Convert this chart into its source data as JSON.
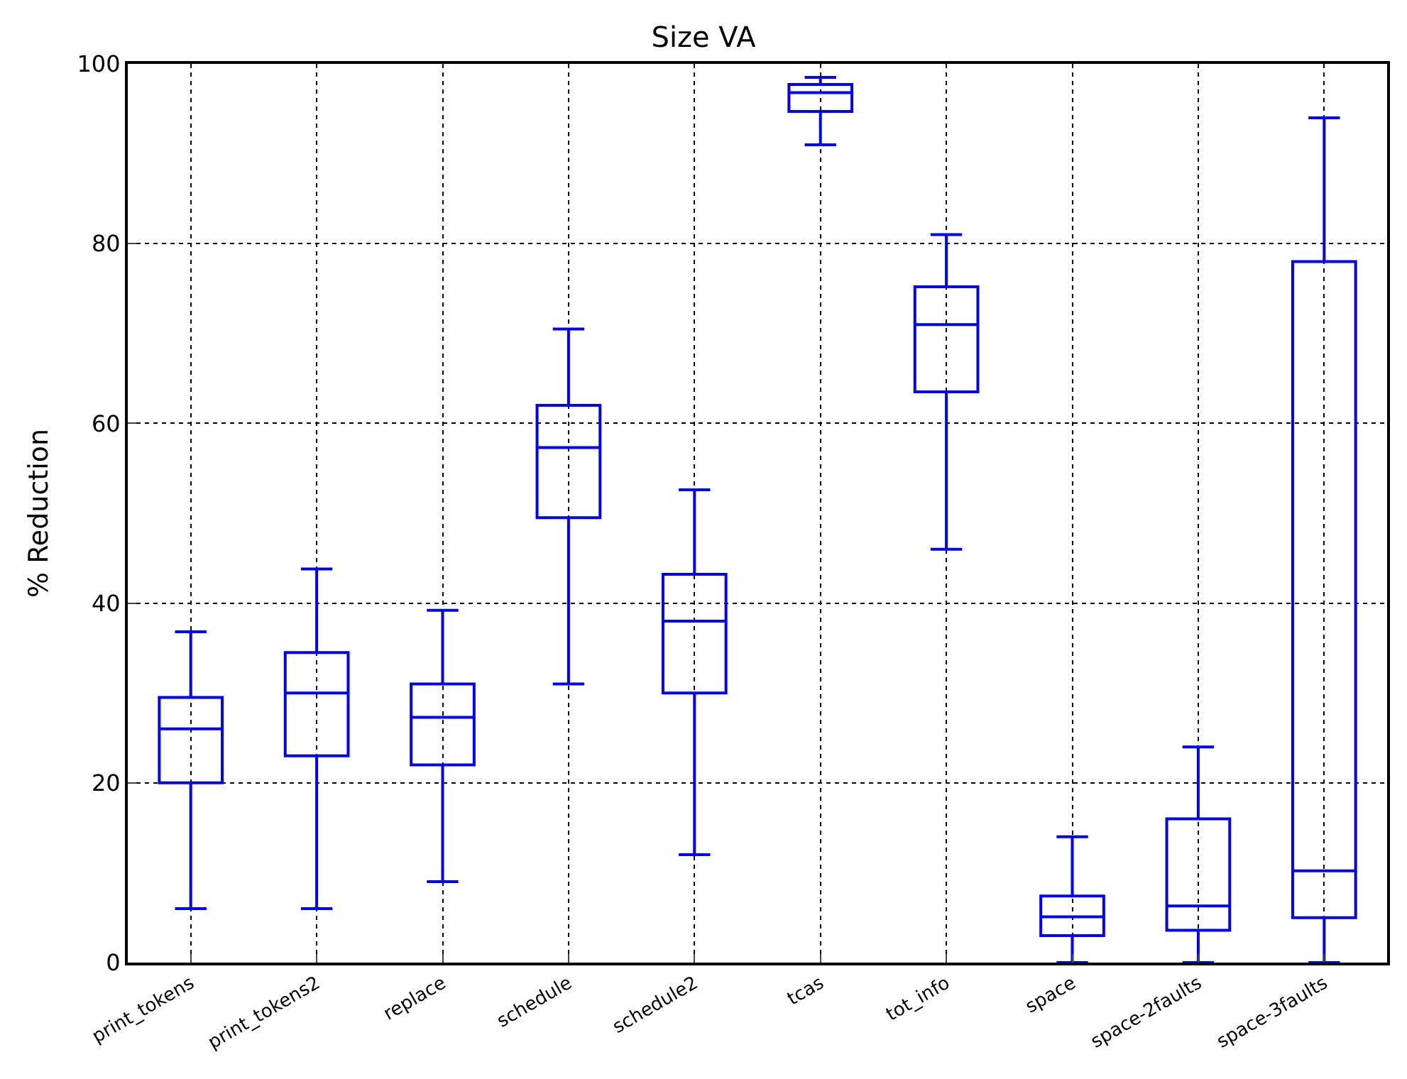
{
  "chart_data": {
    "type": "box",
    "title": "Size VA",
    "ylabel": "% Reduction",
    "categories": [
      "print_tokens",
      "print_tokens2",
      "replace",
      "schedule",
      "schedule2",
      "tcas",
      "tot_info",
      "space",
      "space-2faults",
      "space-3faults"
    ],
    "series": [
      {
        "color": "#0000ff",
        "boxes": [
          {
            "low": 6,
            "q1": 20,
            "median": 26,
            "q3": 29.5,
            "high": 36.8
          },
          {
            "low": 6,
            "q1": 23,
            "median": 30,
            "q3": 34.5,
            "high": 43.8
          },
          {
            "low": 9,
            "q1": 22,
            "median": 27.3,
            "q3": 31,
            "high": 39.2
          },
          {
            "low": 31,
            "q1": 49.5,
            "median": 57.3,
            "q3": 62,
            "high": 70.5
          },
          {
            "low": 12,
            "q1": 30,
            "median": 38,
            "q3": 43.2,
            "high": 52.6
          },
          {
            "low": 91,
            "q1": 94.7,
            "median": 96.8,
            "q3": 97.7,
            "high": 98.5
          },
          {
            "low": 46,
            "q1": 63.5,
            "median": 71,
            "q3": 75.2,
            "high": 81
          },
          {
            "low": 0,
            "q1": 3,
            "median": 5.1,
            "q3": 7.4,
            "high": 14
          },
          {
            "low": 0,
            "q1": 3.6,
            "median": 6.3,
            "q3": 16,
            "high": 24
          },
          {
            "low": 0,
            "q1": 5,
            "median": 10.2,
            "q3": 78,
            "high": 94
          }
        ]
      }
    ],
    "ylim": [
      0,
      100
    ],
    "yticks": [
      0,
      20,
      40,
      60,
      80,
      100
    ],
    "grid": true,
    "legend": false
  }
}
